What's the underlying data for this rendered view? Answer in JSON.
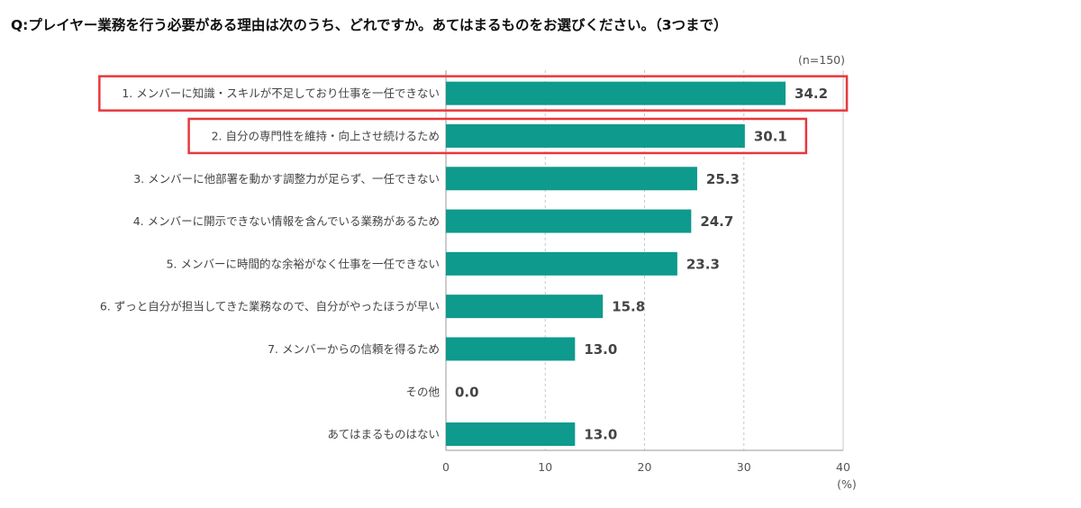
{
  "header": {
    "question": "Q:プレイヤー業務を行う必要がある理由は次のうち、どれですか。あてはまるものをお選びください。（3つまで）"
  },
  "chart_data": {
    "type": "bar",
    "orientation": "horizontal",
    "sample_note": "(n=150)",
    "unit_label": "(%)",
    "categories": [
      "1. メンバーに知識・スキルが不足しており仕事を一任できない",
      "2. 自分の専門性を維持・向上させ続けるため",
      "3. メンバーに他部署を動かす調整力が足らず、一任できない",
      "4. メンバーに開示できない情報を含んでいる業務があるため",
      "5. メンバーに時間的な余裕がなく仕事を一任できない",
      "6. ずっと自分が担当してきた業務なので、自分がやったほうが早い",
      "7. メンバーからの信頼を得るため",
      "その他",
      "あてはまるものはない"
    ],
    "values": [
      34.2,
      30.1,
      25.3,
      24.7,
      23.3,
      15.8,
      13.0,
      0.0,
      13.0
    ],
    "value_labels": [
      "34.2",
      "30.1",
      "25.3",
      "24.7",
      "23.3",
      "15.8",
      "13.0",
      "0.0",
      "13.0"
    ],
    "xlim": [
      0,
      40
    ],
    "xticks": [
      "0",
      "10",
      "20",
      "30",
      "40"
    ],
    "highlighted": [
      0,
      1
    ],
    "colors": {
      "bar": "#0e9a8c",
      "highlight": "#e8383d",
      "grid": "#c8c8c8",
      "axis": "#999999"
    },
    "grid": true,
    "legend": "none"
  }
}
